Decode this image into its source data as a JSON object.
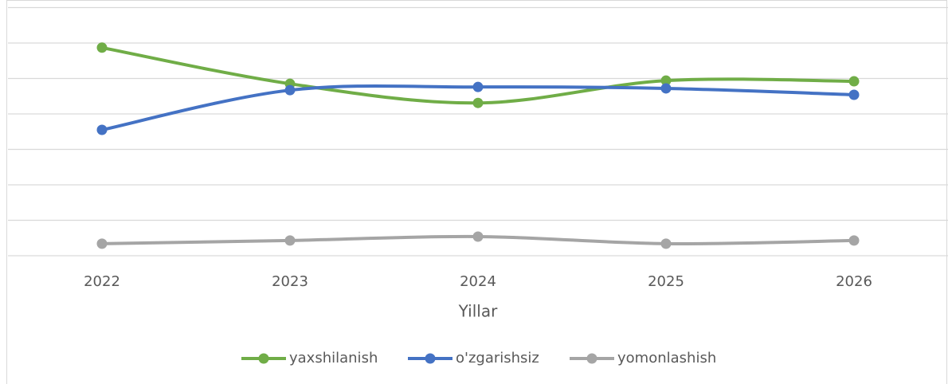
{
  "chart_data": {
    "type": "line",
    "x_label": "Yillar",
    "categories": [
      "2022",
      "2023",
      "2024",
      "2025",
      "2026"
    ],
    "series": [
      {
        "name": "yaxshilanish",
        "color": "#70ad47",
        "values": [
          5.87,
          4.85,
          4.31,
          4.94,
          4.92
        ]
      },
      {
        "name": "o'zgarishsiz",
        "color": "#4472c4",
        "values": [
          3.55,
          4.67,
          4.76,
          4.72,
          4.54
        ]
      },
      {
        "name": "yomonlashish",
        "color": "#a5a5a5",
        "values": [
          0.34,
          0.43,
          0.54,
          0.34,
          0.43
        ]
      }
    ],
    "ylim": [
      0,
      7
    ],
    "yticks": [
      0,
      1,
      2,
      3,
      4,
      5,
      6,
      7
    ],
    "grid": true,
    "smooth": true,
    "legend": "bottom"
  }
}
